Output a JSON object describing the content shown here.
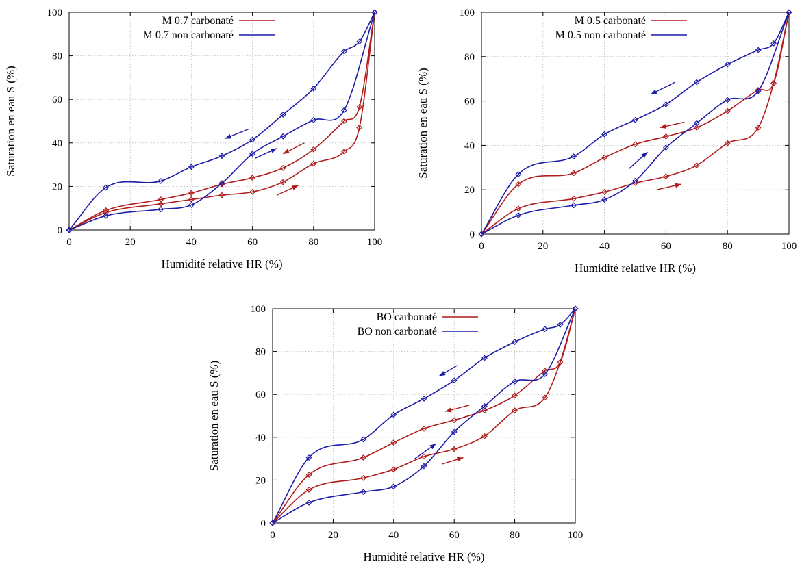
{
  "colors": {
    "carbonated": "#b01c1c",
    "non_carbonated": "#1c1ca8"
  },
  "chart_data": [
    {
      "type": "line",
      "xlabel": "Humidité relative HR (%)",
      "ylabel": "Saturation en eau S (%)",
      "xlim": [
        0,
        100
      ],
      "ylim": [
        0,
        100
      ],
      "xticks": [
        0,
        20,
        40,
        60,
        80,
        100
      ],
      "yticks": [
        0,
        20,
        40,
        60,
        80,
        100
      ],
      "grid": true,
      "legend_position": "top-left",
      "series": [
        {
          "name": "M 0.7 carbonaté",
          "color_key": "carbonated",
          "branch": "desorption",
          "x": [
            0,
            12,
            30,
            40,
            50,
            60,
            70,
            80,
            90,
            95,
            100
          ],
          "y": [
            0,
            9,
            14,
            17,
            21,
            24,
            28.5,
            37,
            50,
            56.5,
            100
          ]
        },
        {
          "color_key": "carbonated",
          "branch": "adsorption",
          "x": [
            0,
            12,
            30,
            40,
            50,
            60,
            70,
            80,
            90,
            95,
            100
          ],
          "y": [
            0,
            8,
            12,
            14,
            16,
            17.5,
            22,
            30.5,
            36,
            47,
            100
          ]
        },
        {
          "name": "M 0.7 non carbonaté",
          "color_key": "non_carbonated",
          "branch": "desorption",
          "x": [
            0,
            12,
            30,
            40,
            50,
            60,
            70,
            80,
            90,
            95,
            100
          ],
          "y": [
            0,
            19.5,
            22.5,
            29,
            34,
            41.5,
            53,
            65,
            82,
            86.5,
            100
          ]
        },
        {
          "color_key": "non_carbonated",
          "branch": "adsorption",
          "x": [
            0,
            12,
            30,
            40,
            50,
            60,
            70,
            80,
            90,
            100
          ],
          "y": [
            0,
            6.5,
            9.5,
            11.5,
            21.5,
            35,
            43,
            50.5,
            55,
            100
          ]
        }
      ],
      "arrows": [
        {
          "color_key": "non_carbonated",
          "from": [
            59,
            46.5
          ],
          "to": [
            51,
            42
          ]
        },
        {
          "color_key": "non_carbonated",
          "from": [
            61,
            33
          ],
          "to": [
            68,
            37.5
          ]
        },
        {
          "color_key": "carbonated",
          "from": [
            77,
            40
          ],
          "to": [
            70,
            35
          ]
        },
        {
          "color_key": "carbonated",
          "from": [
            68,
            16
          ],
          "to": [
            75,
            20.5
          ]
        }
      ]
    },
    {
      "type": "line",
      "xlabel": "Humidité relative HR (%)",
      "ylabel": "Saturation en eau S (%)",
      "xlim": [
        0,
        100
      ],
      "ylim": [
        0,
        100
      ],
      "xticks": [
        0,
        20,
        40,
        60,
        80,
        100
      ],
      "yticks": [
        0,
        20,
        40,
        60,
        80,
        100
      ],
      "grid": true,
      "legend_position": "top-left",
      "series": [
        {
          "name": "M 0.5 carbonaté",
          "color_key": "carbonated",
          "branch": "desorption",
          "x": [
            0,
            12,
            30,
            40,
            50,
            60,
            70,
            80,
            90,
            95,
            100
          ],
          "y": [
            0,
            22.5,
            27.5,
            34.5,
            40.5,
            44,
            48,
            55.5,
            65,
            68,
            100
          ]
        },
        {
          "color_key": "carbonated",
          "branch": "adsorption",
          "x": [
            0,
            12,
            30,
            40,
            50,
            60,
            70,
            80,
            90,
            95,
            100
          ],
          "y": [
            0,
            11.5,
            16,
            19,
            23,
            26,
            31,
            41,
            48,
            68,
            100
          ]
        },
        {
          "name": "M 0.5 non carbonaté",
          "color_key": "non_carbonated",
          "branch": "desorption",
          "x": [
            0,
            12,
            30,
            40,
            50,
            60,
            70,
            80,
            90,
            95,
            100
          ],
          "y": [
            0,
            27,
            35,
            45,
            51.5,
            58.5,
            68.5,
            76.5,
            83,
            86,
            100
          ]
        },
        {
          "color_key": "non_carbonated",
          "branch": "adsorption",
          "x": [
            0,
            12,
            30,
            40,
            50,
            60,
            70,
            80,
            90,
            100
          ],
          "y": [
            0,
            8.5,
            13,
            15.5,
            24,
            39,
            50,
            60.5,
            64.5,
            100
          ]
        }
      ],
      "arrows": [
        {
          "color_key": "non_carbonated",
          "from": [
            63,
            68.5
          ],
          "to": [
            55,
            63
          ]
        },
        {
          "color_key": "carbonated",
          "from": [
            66,
            50.5
          ],
          "to": [
            58,
            48
          ]
        },
        {
          "color_key": "non_carbonated",
          "from": [
            48,
            29.5
          ],
          "to": [
            54,
            37
          ]
        },
        {
          "color_key": "carbonated",
          "from": [
            57,
            20
          ],
          "to": [
            65,
            22.5
          ]
        }
      ]
    },
    {
      "type": "line",
      "xlabel": "Humidité relative HR (%)",
      "ylabel": "Saturation en eau S (%)",
      "xlim": [
        0,
        100
      ],
      "ylim": [
        0,
        100
      ],
      "xticks": [
        0,
        20,
        40,
        60,
        80,
        100
      ],
      "yticks": [
        0,
        20,
        40,
        60,
        80,
        100
      ],
      "grid": true,
      "legend_position": "top-left",
      "series": [
        {
          "name": "BO carbonaté",
          "color_key": "carbonated",
          "branch": "desorption",
          "x": [
            0,
            12,
            30,
            40,
            50,
            60,
            70,
            80,
            90,
            95,
            100
          ],
          "y": [
            0,
            22.5,
            30.5,
            37.5,
            44,
            48,
            52.5,
            59.5,
            71,
            75,
            100
          ]
        },
        {
          "color_key": "carbonated",
          "branch": "adsorption",
          "x": [
            0,
            12,
            30,
            40,
            50,
            60,
            70,
            80,
            90,
            95,
            100
          ],
          "y": [
            0,
            15.5,
            21,
            25,
            31,
            34.5,
            40.5,
            52.5,
            58.5,
            75,
            100
          ]
        },
        {
          "name": "BO non carbonaté",
          "color_key": "non_carbonated",
          "branch": "desorption",
          "x": [
            0,
            12,
            30,
            40,
            50,
            60,
            70,
            80,
            90,
            95,
            100
          ],
          "y": [
            0,
            30.5,
            39,
            50.5,
            58,
            66.5,
            77,
            84.5,
            90.5,
            92.5,
            100
          ]
        },
        {
          "color_key": "non_carbonated",
          "branch": "adsorption",
          "x": [
            0,
            12,
            30,
            40,
            50,
            60,
            70,
            80,
            90,
            100
          ],
          "y": [
            0,
            9.5,
            14.5,
            17,
            26.5,
            42.5,
            54.5,
            66,
            69.5,
            100
          ]
        }
      ],
      "arrows": [
        {
          "color_key": "non_carbonated",
          "from": [
            61,
            73.5
          ],
          "to": [
            55,
            68.5
          ]
        },
        {
          "color_key": "carbonated",
          "from": [
            65,
            55
          ],
          "to": [
            57,
            52
          ]
        },
        {
          "color_key": "non_carbonated",
          "from": [
            47,
            30
          ],
          "to": [
            54,
            37
          ]
        },
        {
          "color_key": "carbonated",
          "from": [
            56,
            27.5
          ],
          "to": [
            63,
            30.5
          ]
        }
      ]
    }
  ]
}
